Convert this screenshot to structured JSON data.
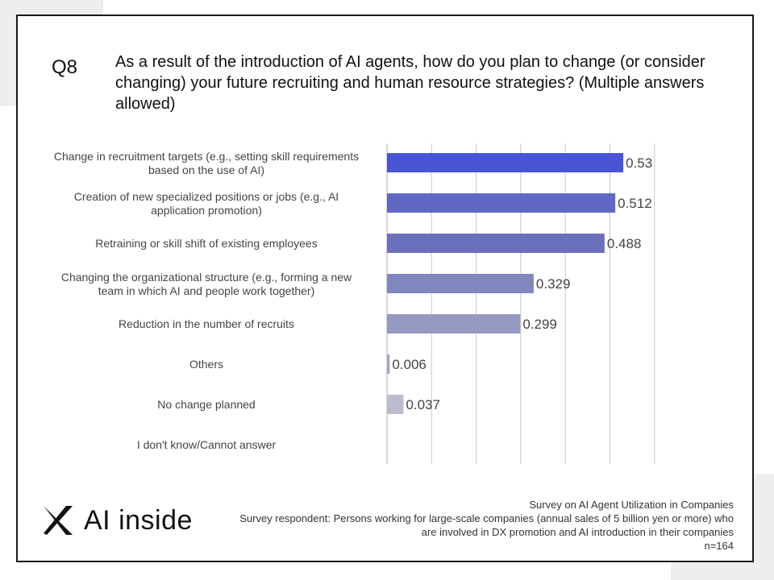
{
  "question": {
    "number": "Q8",
    "text": "As a result of the introduction of AI agents, how do you plan to change (or consider changing) your future recruiting and human resource strategies? (Multiple answers allowed)"
  },
  "chart_data": {
    "type": "bar",
    "orientation": "horizontal",
    "categories": [
      [
        "Change in recruitment targets (e.g., setting skill requirements",
        "based on the use of AI)"
      ],
      [
        "Creation of new specialized positions or jobs (e.g., AI",
        "application promotion)"
      ],
      [
        "Retraining or skill shift of existing employees"
      ],
      [
        "Changing the organizational structure (e.g., forming a new",
        "team in which AI and people work together)"
      ],
      [
        "Reduction in the number of recruits"
      ],
      [
        "Others"
      ],
      [
        "No change planned"
      ],
      [
        "I don't know/Cannot answer"
      ]
    ],
    "values": [
      0.53,
      0.512,
      0.488,
      0.329,
      0.299,
      0.006,
      0.037,
      null
    ],
    "value_labels": [
      "0.53",
      "0.512",
      "0.488",
      "0.329",
      "0.299",
      "0.006",
      "0.037",
      ""
    ],
    "colors": [
      "#4a55d6",
      "#6068c3",
      "#6b70bd",
      "#8086be",
      "#9699c2",
      "#a4a6c7",
      "#bbbccf",
      "#c8c8d6"
    ],
    "xlim": [
      0,
      0.6
    ],
    "grid": true,
    "legend": "none"
  },
  "footer": {
    "line1": "Survey on AI Agent Utilization in Companies",
    "line2": "Survey respondent: Persons working for large-scale companies (annual sales of 5 billion yen or more) who",
    "line3": "are involved in DX promotion and AI introduction in their companies",
    "line4": "n=164"
  },
  "logo": {
    "text": "AI inside",
    "icon": "x-mark-icon"
  }
}
